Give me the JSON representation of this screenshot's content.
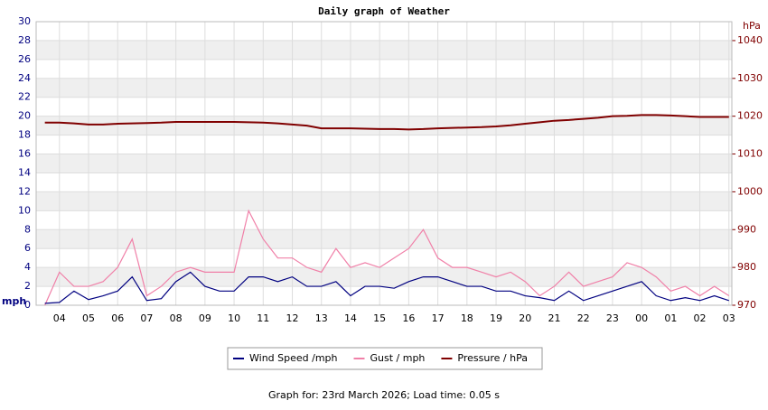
{
  "chart_data": {
    "type": "line",
    "title": "Daily graph of Weather",
    "y_label": "mph",
    "y2_label": "hPa",
    "caption": "Graph for: 23rd March 2026; Load time: 0.05 s",
    "x": [
      3.5,
      4,
      4.5,
      5,
      5.5,
      6,
      6.5,
      7,
      7.5,
      8,
      8.5,
      9,
      9.5,
      10,
      10.5,
      11,
      11.5,
      12,
      12.5,
      13,
      13.5,
      14,
      14.5,
      15,
      15.5,
      16,
      16.5,
      17,
      17.5,
      18,
      18.5,
      19,
      19.5,
      20,
      20.5,
      21,
      21.5,
      22,
      22.5,
      23,
      23.5,
      24,
      24.5,
      25,
      25.5,
      26,
      26.5,
      27
    ],
    "xlim": [
      3.2,
      27.1
    ],
    "xticks": [
      {
        "value": 4,
        "label": "04"
      },
      {
        "value": 5,
        "label": "05"
      },
      {
        "value": 6,
        "label": "06"
      },
      {
        "value": 7,
        "label": "07"
      },
      {
        "value": 8,
        "label": "08"
      },
      {
        "value": 9,
        "label": "09"
      },
      10,
      11,
      12,
      13,
      14,
      15,
      16,
      17,
      18,
      19,
      20,
      21,
      22,
      23,
      {
        "value": 24,
        "label": "00"
      },
      {
        "value": 25,
        "label": "01"
      },
      {
        "value": 26,
        "label": "02"
      },
      {
        "value": 27,
        "label": "03"
      }
    ],
    "ylim": [
      0,
      30
    ],
    "yticks": [
      0,
      2,
      4,
      6,
      8,
      10,
      12,
      14,
      16,
      18,
      20,
      22,
      24,
      26,
      28,
      30
    ],
    "y2lim": [
      970,
      1045
    ],
    "y2ticks": [
      970,
      980,
      990,
      1000,
      1010,
      1020,
      1030,
      1040
    ],
    "grid": true,
    "series": [
      {
        "name": "Wind Speed /mph",
        "color": "#000080",
        "values": [
          0.2,
          0.3,
          1.5,
          0.6,
          1,
          1.5,
          3,
          0.5,
          0.7,
          2.5,
          3.5,
          2,
          1.5,
          1.5,
          3,
          3,
          2.5,
          3,
          2,
          2,
          2.5,
          1,
          2,
          2,
          1.8,
          2.5,
          3,
          3,
          2.5,
          2,
          2,
          1.5,
          1.5,
          1,
          0.8,
          0.5,
          1.5,
          0.5,
          1,
          1.5,
          2,
          2.5,
          1,
          0.5,
          0.8,
          0.5,
          1,
          0.5
        ]
      },
      {
        "name": "Gust / mph",
        "color": "#f080a8",
        "values": [
          0,
          3.5,
          2,
          2,
          2.5,
          4,
          7,
          1,
          2,
          3.5,
          4,
          3.5,
          3.5,
          3.5,
          10,
          7,
          5,
          5,
          4,
          3.5,
          6,
          4,
          4.5,
          4,
          5,
          6,
          8,
          5,
          4,
          4,
          3.5,
          3,
          3.5,
          2.5,
          1,
          2,
          3.5,
          2,
          2.5,
          3,
          4.5,
          4,
          3,
          1.5,
          2,
          1,
          2,
          1
        ]
      },
      {
        "name": "Pressure / hPa",
        "color": "#800000",
        "axis": "y2",
        "values": [
          1018.3,
          1018.3,
          1018.1,
          1017.8,
          1017.8,
          1018,
          1018.1,
          1018.2,
          1018.3,
          1018.5,
          1018.5,
          1018.5,
          1018.5,
          1018.5,
          1018.4,
          1018.3,
          1018.1,
          1017.8,
          1017.5,
          1016.8,
          1016.8,
          1016.8,
          1016.7,
          1016.6,
          1016.6,
          1016.5,
          1016.6,
          1016.8,
          1016.9,
          1017,
          1017.1,
          1017.3,
          1017.6,
          1018,
          1018.4,
          1018.8,
          1019,
          1019.3,
          1019.6,
          1020,
          1020.1,
          1020.3,
          1020.3,
          1020.2,
          1020,
          1019.8,
          1019.8,
          1019.8
        ]
      }
    ]
  }
}
